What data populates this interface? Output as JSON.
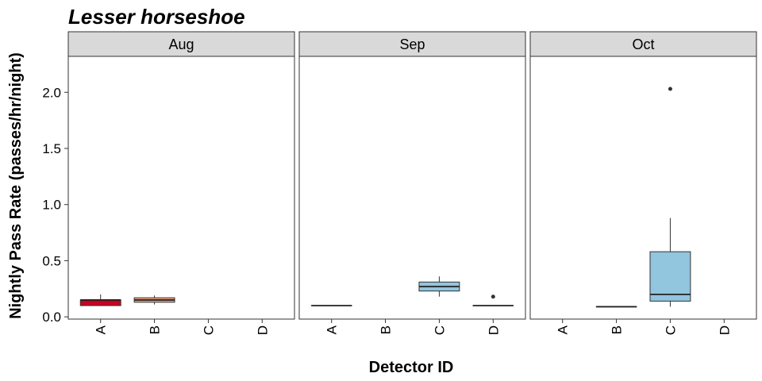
{
  "chart_data": {
    "type": "box",
    "title": "Lesser horseshoe",
    "xlabel": "Detector ID",
    "ylabel": "Nightly Pass Rate (passes/hr/night)",
    "ylim": [
      -0.02,
      2.32
    ],
    "yticks": [
      0.0,
      0.5,
      1.0,
      1.5,
      2.0
    ],
    "ytick_labels": [
      "0.0",
      "0.5",
      "1.0",
      "1.5",
      "2.0"
    ],
    "categories": [
      "A",
      "B",
      "C",
      "D"
    ],
    "grid": false,
    "colors": {
      "A": "#ca0020",
      "B": "#f4a582",
      "C": "#92c5de",
      "D": "#92c5de"
    },
    "panels": [
      {
        "label": "Aug",
        "boxes": [
          {
            "category": "A",
            "fill": "#ca0020",
            "min": 0.1,
            "q1": 0.1,
            "median": 0.15,
            "q3": 0.15,
            "max": 0.2,
            "outliers": []
          },
          {
            "category": "B",
            "fill": "#f4a582",
            "min": 0.11,
            "q1": 0.13,
            "median": 0.15,
            "q3": 0.17,
            "max": 0.19,
            "outliers": []
          }
        ]
      },
      {
        "label": "Sep",
        "boxes": [
          {
            "category": "A",
            "fill": "#92c5de",
            "min": 0.1,
            "q1": 0.1,
            "median": 0.1,
            "q3": 0.1,
            "max": 0.1,
            "outliers": []
          },
          {
            "category": "C",
            "fill": "#92c5de",
            "min": 0.18,
            "q1": 0.23,
            "median": 0.27,
            "q3": 0.31,
            "max": 0.36,
            "outliers": []
          },
          {
            "category": "D",
            "fill": "#92c5de",
            "min": 0.1,
            "q1": 0.1,
            "median": 0.1,
            "q3": 0.1,
            "max": 0.1,
            "outliers": [
              0.18
            ]
          }
        ]
      },
      {
        "label": "Oct",
        "boxes": [
          {
            "category": "B",
            "fill": "#92c5de",
            "min": 0.09,
            "q1": 0.09,
            "median": 0.09,
            "q3": 0.09,
            "max": 0.09,
            "outliers": []
          },
          {
            "category": "C",
            "fill": "#92c5de",
            "min": 0.09,
            "q1": 0.14,
            "median": 0.2,
            "q3": 0.58,
            "max": 0.88,
            "outliers": [
              2.03
            ]
          }
        ]
      }
    ]
  }
}
